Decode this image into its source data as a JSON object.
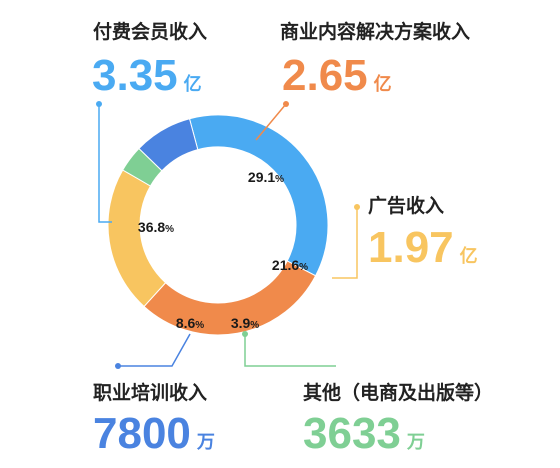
{
  "chart_data": {
    "type": "pie",
    "categories": [
      "付费会员收入",
      "商业内容解决方案收入",
      "广告收入",
      "其他（电商及出版等）",
      "职业培训收入"
    ],
    "values": [
      36.8,
      29.1,
      21.6,
      3.9,
      8.6
    ],
    "percent_labels": [
      "36.8",
      "29.1",
      "21.6",
      "3.9",
      "8.6"
    ],
    "percent_symbol": "%",
    "amounts": [
      {
        "value": "3.35",
        "unit": "亿"
      },
      {
        "value": "2.65",
        "unit": "亿"
      },
      {
        "value": "1.97",
        "unit": "亿"
      },
      {
        "value": "3633",
        "unit": "万"
      },
      {
        "value": "7800",
        "unit": "万"
      }
    ],
    "colors": [
      "#4aaaf2",
      "#f08a4b",
      "#f8c560",
      "#7fcf94",
      "#4a83e0"
    ]
  }
}
